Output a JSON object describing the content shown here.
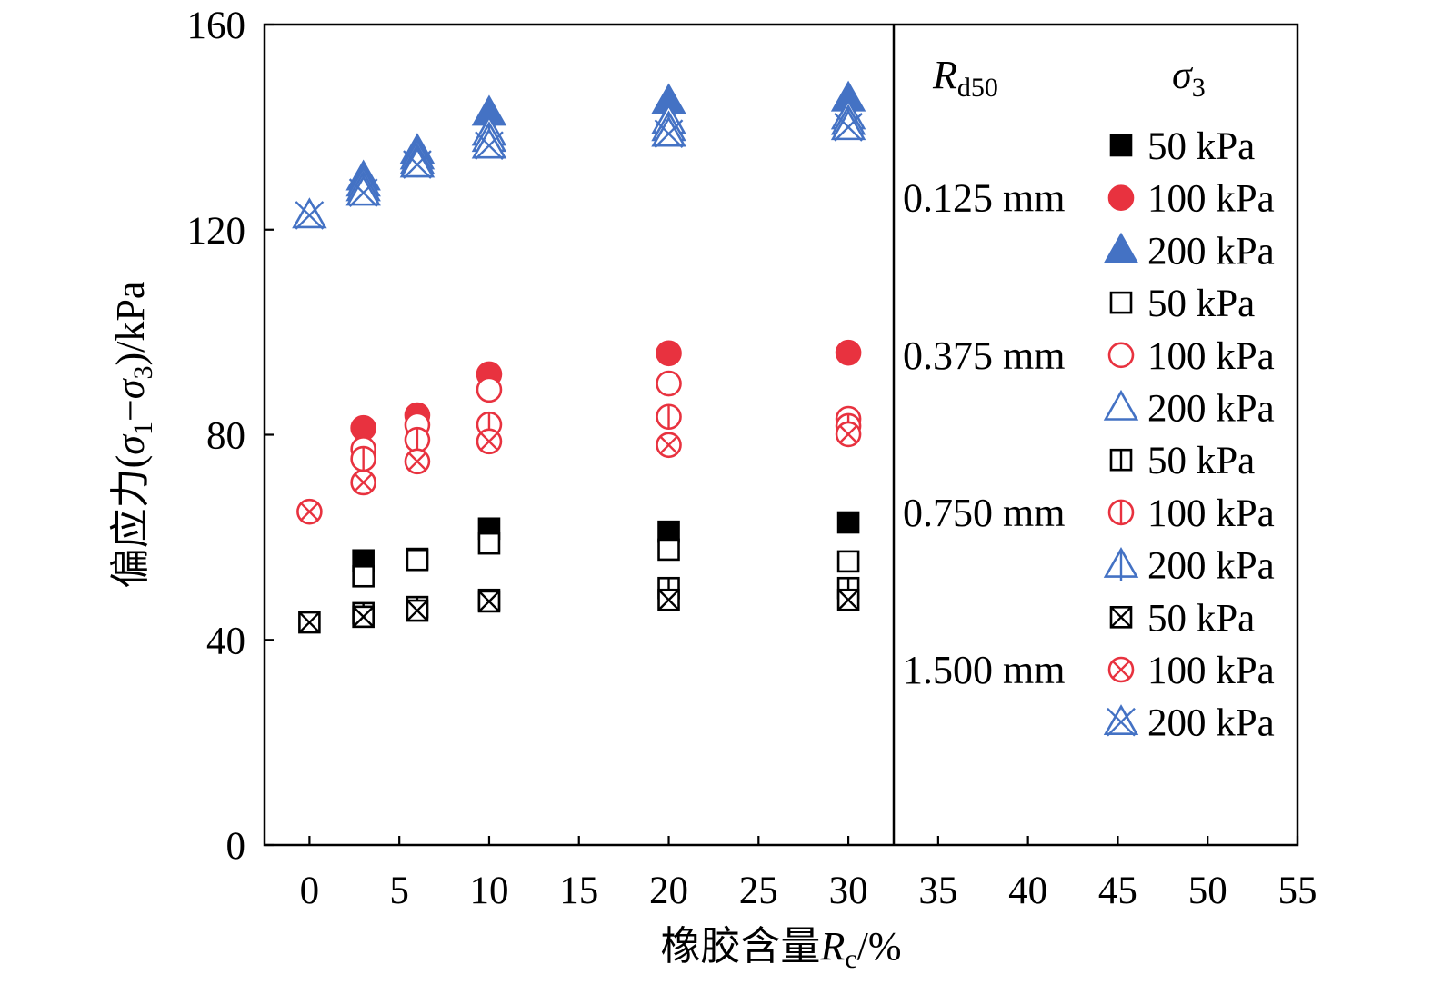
{
  "chart_data": {
    "type": "scatter",
    "xlabel": [
      "橡胶含量",
      "R",
      "c",
      "/%"
    ],
    "ylabel": [
      "偏应力(",
      "σ",
      "1",
      "−",
      "σ",
      "3",
      ")/kPa"
    ],
    "xlim": [
      -2.5,
      55
    ],
    "ylim": [
      0,
      160
    ],
    "xticks": [
      0,
      5,
      10,
      15,
      20,
      25,
      30,
      35,
      40,
      45,
      50,
      55
    ],
    "yticks": [
      0,
      40,
      80,
      120,
      160
    ],
    "grid": false,
    "legend_position": "right",
    "legend_headers": [
      {
        "symbol": "R",
        "subscript": "d50"
      },
      {
        "symbol": "σ",
        "subscript": "3"
      }
    ],
    "groups": [
      {
        "rd50": "0.125 mm",
        "series": [
          {
            "name": "50 kPa",
            "marker": "square",
            "style": "filled",
            "color": "#000000",
            "x": [
              3,
              6,
              10,
              20,
              30
            ],
            "y": [
              55.5,
              55.8,
              61.7,
              61.1,
              62.9
            ]
          },
          {
            "name": "100 kPa",
            "marker": "circle",
            "style": "filled",
            "color": "#e8323f",
            "x": [
              3,
              6,
              10,
              20,
              30
            ],
            "y": [
              81.3,
              83.8,
              91.8,
              95.9,
              96.0
            ]
          },
          {
            "name": "200 kPa",
            "marker": "triangle",
            "style": "filled",
            "color": "#4472c4",
            "x": [
              3,
              6,
              10,
              20,
              30
            ],
            "y": [
              130.2,
              135.4,
              142.8,
              145.1,
              145.6
            ]
          }
        ]
      },
      {
        "rd50": "0.375 mm",
        "series": [
          {
            "name": "50 kPa",
            "marker": "square",
            "style": "hollow",
            "color": "#000000",
            "x": [
              3,
              6,
              10,
              20,
              30
            ],
            "y": [
              52.4,
              55.6,
              58.8,
              57.6,
              55.3
            ]
          },
          {
            "name": "100 kPa",
            "marker": "circle",
            "style": "hollow",
            "color": "#e8323f",
            "x": [
              3,
              6,
              10,
              20,
              30
            ],
            "y": [
              77.2,
              81.9,
              88.8,
              90.0,
              83.1
            ]
          },
          {
            "name": "200 kPa",
            "marker": "triangle",
            "style": "hollow",
            "color": "#4472c4",
            "x": [
              3,
              6,
              10,
              20,
              30
            ],
            "y": [
              129.0,
              134.3,
              138.9,
              141.2,
              142.1
            ]
          }
        ]
      },
      {
        "rd50": "0.750 mm",
        "series": [
          {
            "name": "50 kPa",
            "marker": "square",
            "style": "vline",
            "color": "#000000",
            "x": [
              3,
              6,
              10,
              20,
              30
            ],
            "y": [
              45.2,
              46.4,
              47.8,
              50.1,
              50.1
            ]
          },
          {
            "name": "100 kPa",
            "marker": "circle",
            "style": "vline",
            "color": "#e8323f",
            "x": [
              3,
              6,
              10,
              20,
              30
            ],
            "y": [
              75.3,
              79.0,
              82.0,
              83.5,
              81.7
            ]
          },
          {
            "name": "200 kPa",
            "marker": "triangle",
            "style": "vline",
            "color": "#4472c4",
            "x": [
              3,
              6,
              10,
              20,
              30
            ],
            "y": [
              128.1,
              133.4,
              137.7,
              139.8,
              141.0
            ]
          }
        ]
      },
      {
        "rd50": "1.500 mm",
        "series": [
          {
            "name": "50 kPa",
            "marker": "square",
            "style": "cross",
            "color": "#000000",
            "x": [
              0,
              3,
              6,
              10,
              20,
              30
            ],
            "y": [
              43.4,
              44.5,
              45.7,
              47.5,
              47.8,
              47.8
            ]
          },
          {
            "name": "100 kPa",
            "marker": "circle",
            "style": "cross",
            "color": "#e8323f",
            "x": [
              0,
              3,
              6,
              10,
              20,
              30
            ],
            "y": [
              65.0,
              70.7,
              74.8,
              78.7,
              78.0,
              80.1
            ]
          },
          {
            "name": "200 kPa",
            "marker": "triangle",
            "style": "cross",
            "color": "#4472c4",
            "x": [
              0,
              3,
              6,
              10,
              20,
              30
            ],
            "y": [
              122.8,
              127.2,
              132.7,
              136.4,
              138.7,
              140.0
            ]
          }
        ]
      }
    ]
  }
}
